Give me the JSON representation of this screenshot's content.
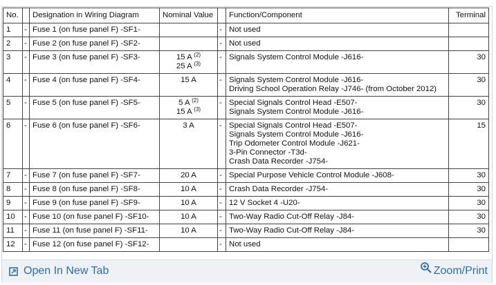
{
  "table": {
    "header": {
      "no": "No.",
      "designation": "Designation in Wiring Diagram",
      "nominal": "Nominal Value",
      "function": "Function/Component",
      "terminal": "Terminal"
    },
    "rows": [
      {
        "no": "1",
        "mark_a": "-",
        "designation": "Fuse 1 (on fuse panel F) -SF1-",
        "mark_b": "-",
        "function": [
          "Not used"
        ]
      },
      {
        "no": "2",
        "mark_a": "-",
        "designation": "Fuse 2 (on fuse panel F) -SF2-",
        "mark_b": "-",
        "function": [
          "Not used"
        ]
      },
      {
        "no": "3",
        "mark_a": "-",
        "designation": "Fuse 3 (on fuse panel F) -SF3-",
        "nominal": [
          {
            "text": "15 A",
            "note": "(2)"
          },
          {
            "text": "25 A",
            "note": "(3)"
          }
        ],
        "mark_b": "-",
        "function": [
          "Signals System Control Module -J616-"
        ],
        "terminal": "30"
      },
      {
        "no": "4",
        "mark_a": "-",
        "designation": "Fuse 4 (on fuse panel F) -SF4-",
        "nominal": [
          {
            "text": "15 A"
          }
        ],
        "mark_b": "-",
        "function": [
          "Signals System Control Module -J616-",
          "Driving School Operation Relay -J746- (from October 2012)"
        ],
        "terminal": "30"
      },
      {
        "no": "5",
        "mark_a": "-",
        "designation": "Fuse 5 (on fuse panel F) -SF5-",
        "nominal": [
          {
            "text": "5 A",
            "note": "(2)"
          },
          {
            "text": "15 A",
            "note": "(3)"
          }
        ],
        "mark_b": "-",
        "function": [
          "Special Signals Control Head -E507-",
          "Signals System Control Module -J616-"
        ],
        "terminal": "30"
      },
      {
        "no": "6",
        "mark_a": "-",
        "designation": "Fuse 6 (on fuse panel F) -SF6-",
        "nominal": [
          {
            "text": "3 A"
          }
        ],
        "mark_b": "-",
        "function": [
          "Special Signals Control Head -E507-",
          "Signals System Control Module -J616-",
          "Trip Odometer Control Module -J621-",
          "3-Pin Connector -T3d-",
          "Crash Data Recorder -J754-"
        ],
        "terminal": "15"
      },
      {
        "no": "7",
        "mark_a": "-",
        "designation": "Fuse 7 (on fuse panel F) -SF7-",
        "nominal": [
          {
            "text": "20 A"
          }
        ],
        "mark_b": "-",
        "function": [
          "Special Purpose Vehicle Control Module -J608-"
        ],
        "terminal": "30"
      },
      {
        "no": "8",
        "mark_a": "-",
        "designation": "Fuse 8 (on fuse panel F) -SF8-",
        "nominal": [
          {
            "text": "10 A"
          }
        ],
        "mark_b": "-",
        "function": [
          "Crash Data Recorder -J754-"
        ],
        "terminal": "30"
      },
      {
        "no": "9",
        "mark_a": "-",
        "designation": "Fuse 9 (on fuse panel F) -SF9-",
        "nominal": [
          {
            "text": "10 A"
          }
        ],
        "mark_b": "-",
        "function": [
          "12 V Socket 4 -U20-"
        ],
        "terminal": "30"
      },
      {
        "no": "10",
        "mark_a": "-",
        "designation": "Fuse 10 (on fuse panel F) -SF10-",
        "nominal": [
          {
            "text": "10 A"
          }
        ],
        "mark_b": "-",
        "function": [
          "Two-Way Radio Cut-Off Relay -J84-"
        ],
        "terminal": "30"
      },
      {
        "no": "11",
        "mark_a": "-",
        "designation": "Fuse 11 (on fuse panel F) -SF11-",
        "nominal": [
          {
            "text": "10 A"
          }
        ],
        "mark_b": "-",
        "function": [
          "Two-Way Radio Cut-Off Relay -J84-"
        ],
        "terminal": "30"
      },
      {
        "no": "12",
        "mark_a": "-",
        "designation": "Fuse 12 (on fuse panel F) -SF12-",
        "mark_b": "-",
        "function": [
          "Not used"
        ]
      }
    ]
  },
  "footer": {
    "open": "Open In New Tab",
    "zoom": "Zoom/Print"
  }
}
